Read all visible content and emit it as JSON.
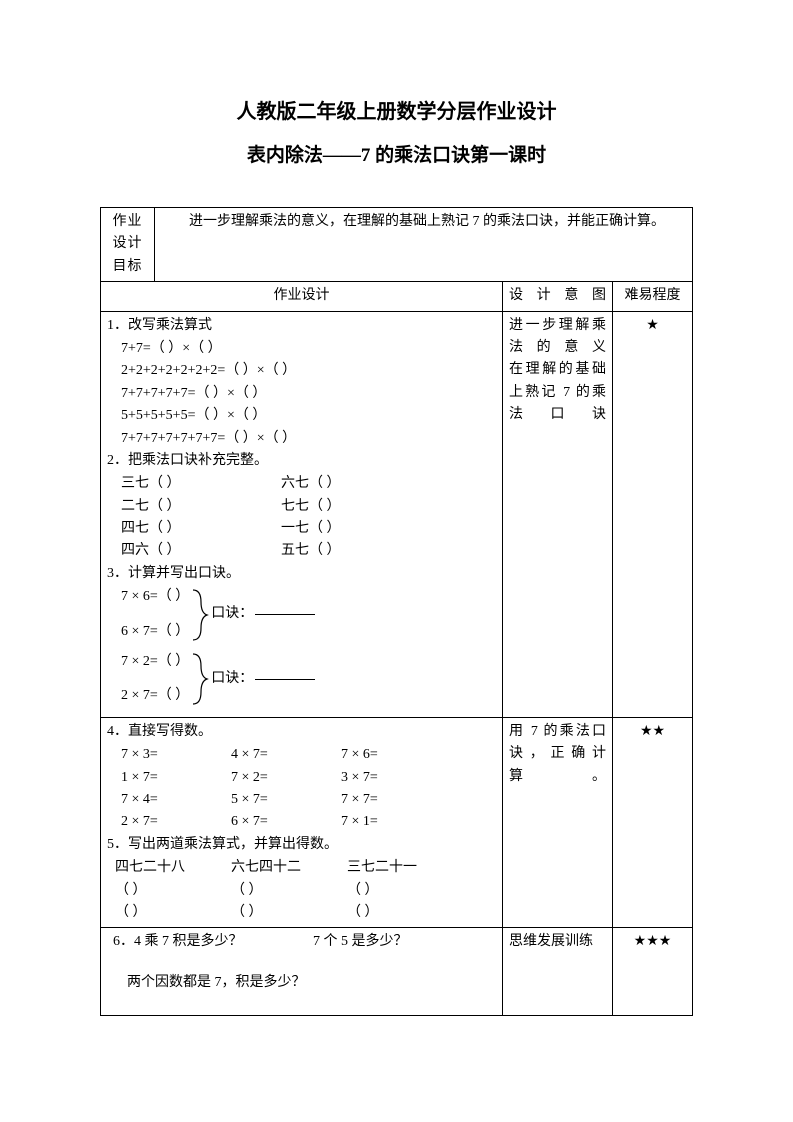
{
  "title_1": "人教版二年级上册数学分层作业设计",
  "title_2": "表内除法——7 的乘法口诀第一课时",
  "header": {
    "goal_label": "作业设计目标",
    "goal_text": "进一步理解乘法的意义，在理解的基础上熟记 7 的乘法口诀，并能正确计算。",
    "design_label": "作业设计",
    "intent_label": "设计意图",
    "level_label": "难易程度"
  },
  "section1": {
    "q1_title": "1．改写乘法算式",
    "q1_lines": [
      "7+7=（  ）×（  ）",
      "2+2+2+2+2+2+2=（  ）×（  ）",
      "7+7+7+7+7=（  ）×（  ）",
      "5+5+5+5+5=（  ）×（  ）",
      "7+7+7+7+7+7+7=（  ）×（  ）"
    ],
    "q2_title": "2．把乘法口诀补充完整。",
    "q2_pairs": [
      [
        "三七（        ）",
        "六七（        ）"
      ],
      [
        "二七（        ）",
        "七七（        ）"
      ],
      [
        "四七（        ）",
        "一七（        ）"
      ],
      [
        "四六（        ）",
        "五七（        ）"
      ]
    ],
    "q3_title": "3．计算并写出口诀。",
    "q3_group1": [
      "7 × 6=（   ）",
      "6 × 7=（   ）"
    ],
    "q3_group2": [
      "7 × 2=（   ）",
      "2 × 7=（   ）"
    ],
    "q3_kouju": "口诀：",
    "intent": "进一步理解乘法的意义\n在理解的基础上熟记 7 的乘法口诀",
    "level": "★"
  },
  "section2": {
    "q4_title": "4．直接写得数。",
    "q4_rows": [
      [
        "7 × 3=",
        "4 × 7=",
        "7 × 6="
      ],
      [
        "1 × 7=",
        "7 × 2=",
        "3 × 7="
      ],
      [
        "7 × 4=",
        "5 × 7=",
        "7 × 7="
      ],
      [
        "2 × 7=",
        "6 × 7=",
        "7 × 1="
      ]
    ],
    "q5_title": "5．写出两道乘法算式，并算出得数。",
    "q5_heads": [
      "四七二十八",
      "六七四十二",
      "三七二十一"
    ],
    "q5_blank": "（            ）",
    "intent": "用 7 的乘法口诀，正确计算。",
    "level": "★★"
  },
  "section3": {
    "q6_a": "6．4 乘 7 积是多少？",
    "q6_b": "7 个 5 是多少？",
    "q6_c": "两个因数都是 7，积是多少？",
    "intent": "思维发展训练",
    "level": "★★★"
  }
}
